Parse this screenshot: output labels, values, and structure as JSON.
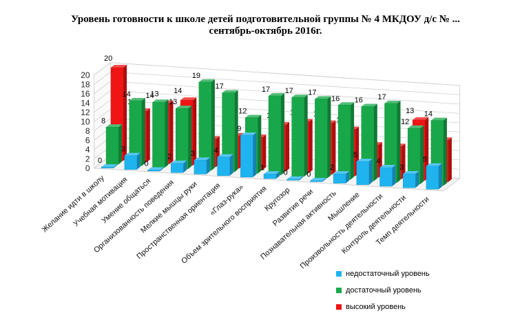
{
  "chart_data": {
    "type": "bar",
    "title": "Уровень готовности к школе детей подготовительной группы № 4 МКДОУ д/с № ...",
    "subtitle": "сентябрь-октябрь 2016г.",
    "categories": [
      "Желание идти в школу",
      "Учебная мотивация",
      "Умение общаться",
      "Организованность поведения",
      "Мелкие мышцы руки",
      "Пространственная ориентация",
      "«Глаз-рука»",
      "Объем зрительного восприятия",
      "Кругозор",
      "Развитие речи",
      "Познавательная активность",
      "Мышление",
      "Произвольность деятельности",
      "Контроль деятельности",
      "Темп деятельности"
    ],
    "series": [
      {
        "name": "недостаточный уровень",
        "color": "#1fb4f0",
        "values": [
          0,
          3,
          0,
          2,
          3,
          4,
          9,
          1,
          0,
          0,
          2,
          5,
          4,
          3,
          5
        ]
      },
      {
        "name": "достаточный уровень",
        "color": "#18a84a",
        "values": [
          8,
          14,
          14,
          13,
          19,
          17,
          12,
          17,
          17,
          17,
          16,
          16,
          17,
          12,
          14
        ]
      },
      {
        "name": "высокий уровень",
        "color": "#f01414",
        "values": [
          20,
          11,
          13,
          14,
          6,
          7,
          7,
          10,
          11,
          11,
          10,
          7,
          7,
          13,
          9
        ]
      }
    ],
    "yticks": [
      "0",
      "2",
      "4",
      "6",
      "8",
      "10",
      "12",
      "14",
      "16",
      "18",
      "20"
    ],
    "ylim": [
      0,
      20
    ],
    "grid": true,
    "legend_position": "bottom-right"
  }
}
